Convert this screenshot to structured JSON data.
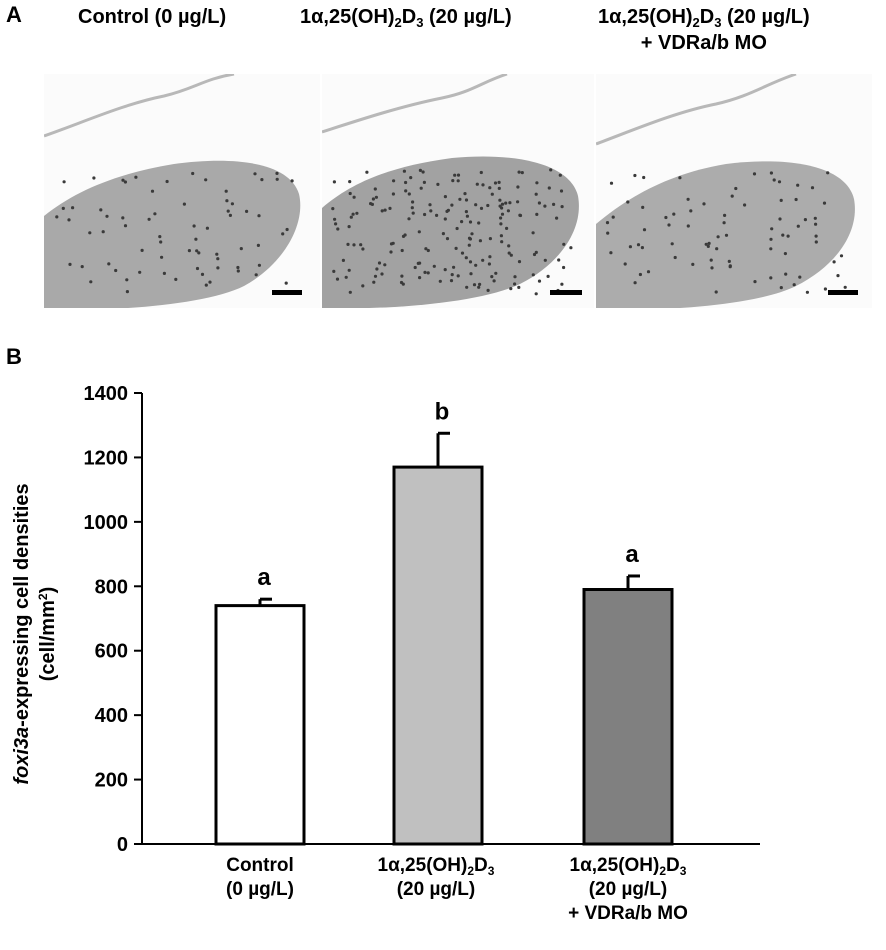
{
  "panel_a": {
    "letter": "A",
    "images": [
      {
        "title_1": "Control (0 µg/L)",
        "title_2": ""
      },
      {
        "title_1_pre": "1α,25(OH)",
        "title_1_sub1": "2",
        "title_1_mid": "D",
        "title_1_sub2": "3",
        "title_1_post": " (20 µg/L)"
      },
      {
        "title_1_pre": "1α,25(OH)",
        "title_1_sub1": "2",
        "title_1_mid": "D",
        "title_1_sub2": "3",
        "title_1_post": " (20 µg/L)",
        "title_2": "+ VDRa/b MO"
      }
    ]
  },
  "panel_b": {
    "letter": "B"
  },
  "chart_data": {
    "type": "bar",
    "categories": [
      "Control (0 µg/L)",
      "1α,25(OH)2D3 (20 µg/L)",
      "1α,25(OH)2D3 (20 µg/L) + VDRa/b MO"
    ],
    "values": [
      740,
      1170,
      790
    ],
    "errors": [
      20,
      105,
      42
    ],
    "letters": [
      "a",
      "b",
      "a"
    ],
    "bar_colors": [
      "#ffffff",
      "#c0c0c0",
      "#808080"
    ],
    "ylabel_italic": "foxi3a",
    "ylabel_rest": "-expressing cell densities",
    "ylabel_unit_pre": "(cell/mm",
    "ylabel_unit_sup": "2",
    "ylabel_unit_post": ")",
    "ylim": [
      0,
      1400
    ],
    "yticks": [
      0,
      200,
      400,
      600,
      800,
      1000,
      1200,
      1400
    ],
    "xtick_labels": [
      {
        "line1": "Control",
        "line2": "(0 µg/L)",
        "line3": ""
      },
      {
        "line1_pre": "1α,25(OH)",
        "line1_sub1": "2",
        "line1_mid": "D",
        "line1_sub2": "3",
        "line2": "(20 µg/L)",
        "line3": ""
      },
      {
        "line1_pre": "1α,25(OH)",
        "line1_sub1": "2",
        "line1_mid": "D",
        "line1_sub2": "3",
        "line2": "(20 µg/L)",
        "line3": "+ VDRa/b MO"
      }
    ],
    "grid": false,
    "legend": "none"
  }
}
